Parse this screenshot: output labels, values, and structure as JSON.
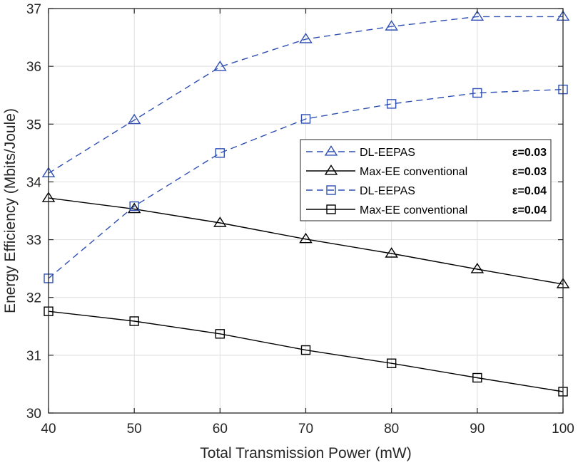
{
  "chart_data": {
    "type": "line",
    "title": "",
    "xlabel": "Total Transmission Power (mW)",
    "ylabel": "Energy Efficiency (Mbits/Joule)",
    "x": [
      40,
      50,
      60,
      70,
      80,
      90,
      100
    ],
    "xlim": [
      40,
      100
    ],
    "ylim": [
      30,
      37
    ],
    "xticks": [
      "40",
      "50",
      "60",
      "70",
      "80",
      "90",
      "100"
    ],
    "yticks": [
      "30",
      "31",
      "32",
      "33",
      "34",
      "35",
      "36",
      "37"
    ],
    "grid": true,
    "legend_position": "center-right",
    "series": [
      {
        "name": "DL-EEPAS",
        "epsilon": "ε=0.03",
        "marker": "triangle",
        "style": "dashed",
        "color": "#2f4fb3",
        "values": [
          34.15,
          35.07,
          35.99,
          36.47,
          36.69,
          36.86,
          36.86
        ]
      },
      {
        "name": "Max-EE conventional",
        "epsilon": "ε=0.03",
        "marker": "triangle",
        "style": "solid",
        "color": "#000000",
        "values": [
          33.72,
          33.53,
          33.29,
          33.01,
          32.76,
          32.49,
          32.23
        ]
      },
      {
        "name": "DL-EEPAS",
        "epsilon": "ε=0.04",
        "marker": "square",
        "style": "dashed",
        "color": "#2f4fb3",
        "values": [
          32.33,
          33.58,
          34.5,
          35.09,
          35.35,
          35.54,
          35.6
        ]
      },
      {
        "name": "Max-EE conventional",
        "epsilon": "ε=0.04",
        "marker": "square",
        "style": "solid",
        "color": "#000000",
        "values": [
          31.76,
          31.59,
          31.37,
          31.09,
          30.86,
          30.61,
          30.37
        ]
      }
    ]
  }
}
